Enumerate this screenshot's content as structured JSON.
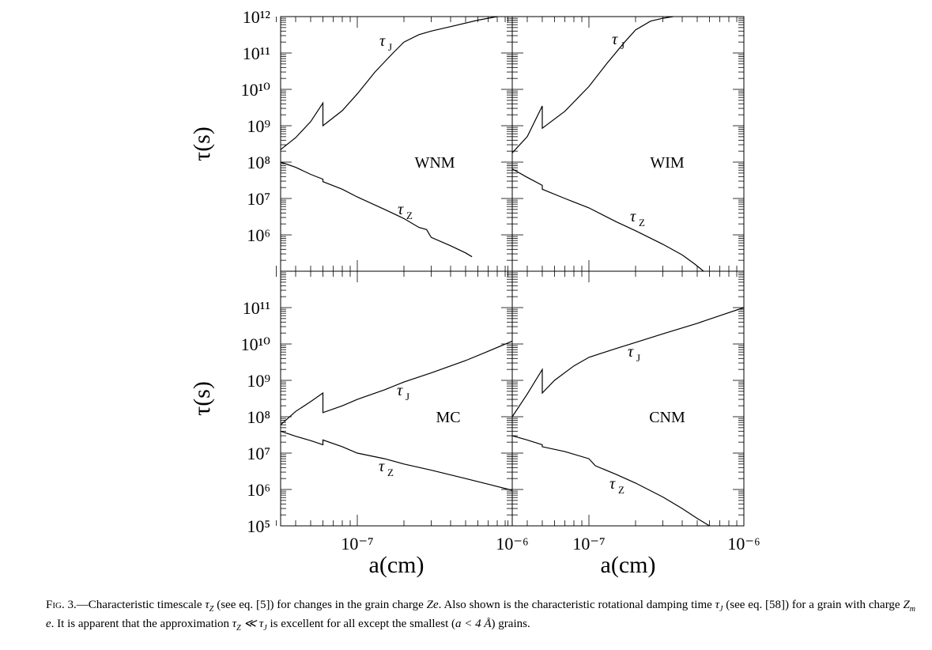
{
  "chart_data": [
    {
      "type": "line",
      "title": "WNM",
      "panel_label": "WNM",
      "xlabel": "",
      "ylabel": "τ(s)",
      "xscale": "log",
      "yscale": "log",
      "xlim": [
        3.2e-08,
        1e-06
      ],
      "ylim": [
        100000.0,
        1000000000000.0
      ],
      "y_tick_labels": [
        "10¹²",
        "10¹¹",
        "10¹⁰",
        "10⁹",
        "10⁸",
        "10⁷",
        "10⁶"
      ],
      "x_tick_labels": [],
      "series": [
        {
          "name": "τJ",
          "x": [
            3.2e-08,
            4e-08,
            5e-08,
            6e-08,
            6e-08,
            8e-08,
            1e-07,
            1.3e-07,
            1.7e-07,
            2e-07,
            2.5e-07,
            3e-07,
            4e-07,
            6e-07,
            8e-07
          ],
          "y": [
            220000000.0,
            470000000.0,
            1300000000.0,
            4200000000.0,
            1000000000.0,
            2600000000.0,
            7500000000.0,
            30000000000.0,
            100000000000.0,
            200000000000.0,
            320000000000.0,
            400000000000.0,
            530000000000.0,
            800000000000.0,
            1000000000000.0
          ]
        },
        {
          "name": "τZ",
          "x": [
            3.2e-08,
            4e-08,
            5e-08,
            6e-08,
            6e-08,
            8e-08,
            1e-07,
            1.5e-07,
            2e-07,
            2.5e-07,
            2.8e-07,
            3e-07,
            4e-07,
            5e-07,
            5.5e-07
          ],
          "y": [
            100000000.0,
            72000000.0,
            46000000.0,
            34000000.0,
            29000000.0,
            18000000.0,
            11000000.0,
            5000000.0,
            2800000.0,
            1600000.0,
            1400000.0,
            850000.0,
            500000.0,
            320000.0,
            250000.0
          ]
        }
      ],
      "curve_labels": [
        {
          "series": "τJ",
          "text": "τ",
          "sub": "J"
        },
        {
          "series": "τZ",
          "text": "τ",
          "sub": "Z"
        }
      ],
      "grid": false,
      "legend": "none"
    },
    {
      "type": "line",
      "title": "WIM",
      "panel_label": "WIM",
      "xlabel": "",
      "ylabel": "",
      "xscale": "log",
      "yscale": "log",
      "xlim": [
        3.2e-08,
        1e-06
      ],
      "ylim": [
        100000.0,
        1000000000000.0
      ],
      "y_tick_labels": [],
      "x_tick_labels": [],
      "series": [
        {
          "name": "τJ",
          "x": [
            3.2e-08,
            4e-08,
            5e-08,
            5e-08,
            7e-08,
            1e-07,
            1.3e-07,
            1.7e-07,
            2e-07,
            2.5e-07,
            3e-07,
            3.5e-07
          ],
          "y": [
            180000000.0,
            500000000.0,
            3500000000.0,
            850000000.0,
            2500000000.0,
            12000000000.0,
            50000000000.0,
            200000000000.0,
            430000000000.0,
            750000000000.0,
            900000000000.0,
            1000000000000.0
          ]
        },
        {
          "name": "τZ",
          "x": [
            3.2e-08,
            4e-08,
            5e-08,
            5e-08,
            7e-08,
            1e-07,
            1.5e-07,
            2e-07,
            3e-07,
            4e-07,
            4.8e-07,
            5.5e-07
          ],
          "y": [
            65000000.0,
            38000000.0,
            23000000.0,
            18000000.0,
            10000000.0,
            5500000.0,
            2300000.0,
            1300000.0,
            550000.0,
            280000.0,
            160000.0,
            100000.0
          ]
        }
      ],
      "curve_labels": [
        {
          "series": "τJ",
          "text": "τ",
          "sub": "J"
        },
        {
          "series": "τZ",
          "text": "τ",
          "sub": "Z"
        }
      ],
      "grid": false,
      "legend": "none"
    },
    {
      "type": "line",
      "title": "MC",
      "panel_label": "MC",
      "xlabel": "a(cm)",
      "ylabel": "τ(s)",
      "xscale": "log",
      "yscale": "log",
      "xlim": [
        3.2e-08,
        1e-06
      ],
      "ylim": [
        100000.0,
        1000000000000.0
      ],
      "y_tick_labels": [
        "10¹¹",
        "10¹⁰",
        "10⁹",
        "10⁸",
        "10⁷",
        "10⁶",
        "10⁵"
      ],
      "x_tick_labels": [
        "10⁻⁷",
        "10⁻⁶"
      ],
      "series": [
        {
          "name": "τJ",
          "x": [
            3.2e-08,
            4e-08,
            5e-08,
            6e-08,
            6e-08,
            8e-08,
            1e-07,
            1.5e-07,
            2e-07,
            3e-07,
            5e-07,
            7e-07,
            1e-06
          ],
          "y": [
            60000000.0,
            140000000.0,
            260000000.0,
            450000000.0,
            130000000.0,
            200000000.0,
            300000000.0,
            550000000.0,
            900000000.0,
            1600000000.0,
            3500000000.0,
            6300000000.0,
            12000000000.0
          ]
        },
        {
          "name": "τZ",
          "x": [
            3.2e-08,
            4e-08,
            5e-08,
            6e-08,
            6e-08,
            8e-08,
            1e-07,
            1.5e-07,
            2e-07,
            3e-07,
            5e-07,
            7e-07,
            1e-06
          ],
          "y": [
            40000000.0,
            29000000.0,
            22000000.0,
            17000000.0,
            23000000.0,
            15000000.0,
            10000000.0,
            7000000.0,
            5000000.0,
            3400000.0,
            2000000.0,
            1400000.0,
            950000.0
          ]
        }
      ],
      "curve_labels": [
        {
          "series": "τJ",
          "text": "τ",
          "sub": "J"
        },
        {
          "series": "τZ",
          "text": "τ",
          "sub": "Z"
        }
      ],
      "grid": false,
      "legend": "none"
    },
    {
      "type": "line",
      "title": "CNM",
      "panel_label": "CNM",
      "xlabel": "a(cm)",
      "ylabel": "",
      "xscale": "log",
      "yscale": "log",
      "xlim": [
        3.2e-08,
        1e-06
      ],
      "ylim": [
        100000.0,
        1000000000000.0
      ],
      "y_tick_labels": [],
      "x_tick_labels": [
        "10⁻⁷",
        "10⁻⁶"
      ],
      "series": [
        {
          "name": "τJ",
          "x": [
            3.2e-08,
            4e-08,
            5e-08,
            5e-08,
            6e-08,
            8e-08,
            1e-07,
            1.5e-07,
            2e-07,
            3e-07,
            5e-07,
            7e-07,
            1e-06
          ],
          "y": [
            100000000.0,
            420000000.0,
            2000000000.0,
            450000000.0,
            1000000000.0,
            2500000000.0,
            4300000000.0,
            7500000000.0,
            11000000000.0,
            19000000000.0,
            37000000000.0,
            60000000000.0,
            100000000000.0
          ]
        },
        {
          "name": "τZ",
          "x": [
            3.2e-08,
            4e-08,
            5e-08,
            5e-08,
            7e-08,
            1e-07,
            1.1e-07,
            1.5e-07,
            2e-07,
            3e-07,
            4e-07,
            5e-07,
            6e-07
          ],
          "y": [
            30000000.0,
            23000000.0,
            17000000.0,
            15000000.0,
            11000000.0,
            7000000.0,
            4500000.0,
            2600000.0,
            1500000.0,
            620000.0,
            300000.0,
            160000.0,
            100000.0
          ]
        }
      ],
      "curve_labels": [
        {
          "series": "τJ",
          "text": "τ",
          "sub": "J"
        },
        {
          "series": "τZ",
          "text": "τ",
          "sub": "Z"
        }
      ],
      "grid": false,
      "legend": "none"
    }
  ],
  "caption": {
    "label": "Fig. 3.",
    "parts": [
      "—Characteristic timescale ",
      " (see eq. [5]) for changes in the grain charge ",
      ". Also shown is the characteristic rotational damping time ",
      " (see eq. [58]) for a grain with charge ",
      ". It is apparent that the approximation ",
      " is excellent for all except the smallest (",
      ") grains."
    ],
    "math": {
      "tau_z": "τ",
      "tau_z_sub": "Z",
      "ze": "Ze",
      "tau_j": "τ",
      "tau_j_sub": "J",
      "zm": "Z",
      "zm_sub": "m",
      "zm_e": " e",
      "approx": "τ",
      "approx_sub1": "Z",
      "approx_rel": " ≪ τ",
      "approx_sub2": "J",
      "cond": "a < 4 Å"
    }
  }
}
